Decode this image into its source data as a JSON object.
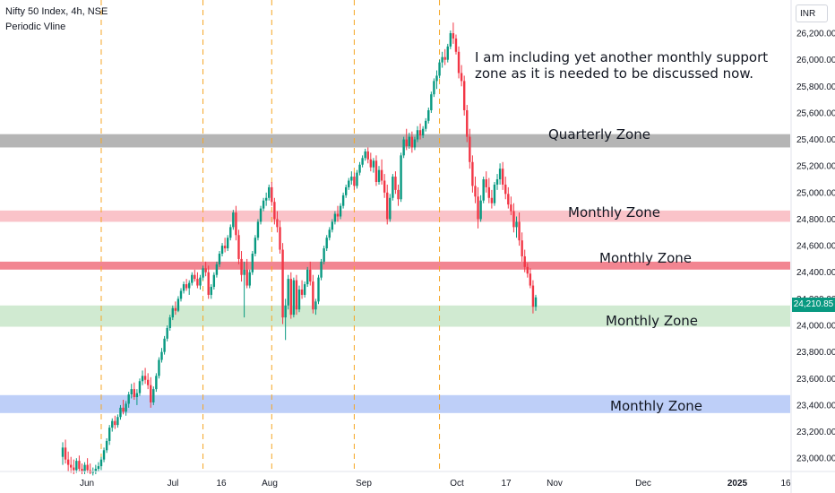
{
  "header": {
    "title": "Nifty 50 Index, 4h, NSE",
    "indicator": "Periodic Vline",
    "currency": "INR"
  },
  "last_price": "24,210.85",
  "annotation": "I am including yet another monthly support zone as it is needed to be discussed now.",
  "colors": {
    "up": "#089981",
    "down": "#f23645",
    "vline": "#f5a623",
    "quarterly_zone": "#a8a8a8",
    "monthly_zone_pink": "#f9b8c0",
    "monthly_zone_red": "#f0707e",
    "monthly_zone_green": "#c8e6c9",
    "monthly_zone_blue": "#b3c7f7"
  },
  "chart_data": {
    "type": "candlestick",
    "y_axis": {
      "range": [
        22900,
        26450
      ],
      "ticks": [
        "23,000.00",
        "23,200.00",
        "23,400.00",
        "23,600.00",
        "23,800.00",
        "24,000.00",
        "24,200.00",
        "24,400.00",
        "24,600.00",
        "24,800.00",
        "25,000.00",
        "25,200.00",
        "25,400.00",
        "25,600.00",
        "25,800.00",
        "26,000.00",
        "26,200.00"
      ],
      "tick_values": [
        23000,
        23200,
        23400,
        23600,
        23800,
        24000,
        24200,
        24400,
        24600,
        24800,
        25000,
        25200,
        25400,
        25600,
        25800,
        26000,
        26200
      ]
    },
    "x_axis": {
      "labels": [
        "Jun",
        "Jul",
        "16",
        "Aug",
        "Sep",
        "Oct",
        "17",
        "Nov",
        "Dec",
        "2025",
        "16"
      ],
      "bold_labels": [
        "2025"
      ]
    },
    "zones": [
      {
        "label": "Quarterly Zone",
        "low": 25340,
        "high": 25440,
        "color": "#a8a8a8"
      },
      {
        "label": "Monthly Zone",
        "low": 24780,
        "high": 24865,
        "color": "#f9b8c0"
      },
      {
        "label": "Monthly Zone",
        "low": 24420,
        "high": 24480,
        "color": "#f0707e"
      },
      {
        "label": "Monthly Zone",
        "low": 23990,
        "high": 24150,
        "color": "#c8e6c9"
      },
      {
        "label": "Monthly Zone",
        "low": 23340,
        "high": 23475,
        "color": "#b3c7f7"
      }
    ],
    "candles": [
      [
        23010,
        23120,
        22950,
        23080
      ],
      [
        23080,
        23140,
        22960,
        22990
      ],
      [
        22990,
        23050,
        22900,
        22950
      ],
      [
        22950,
        23010,
        22890,
        22930
      ],
      [
        22930,
        22990,
        22880,
        22910
      ],
      [
        22910,
        23000,
        22890,
        22980
      ],
      [
        22980,
        23020,
        22900,
        22920
      ],
      [
        22920,
        22960,
        22880,
        22900
      ],
      [
        22900,
        22970,
        22880,
        22950
      ],
      [
        22950,
        23000,
        22890,
        22910
      ],
      [
        22910,
        22960,
        22880,
        22890
      ],
      [
        22890,
        22930,
        22870,
        22900
      ],
      [
        22900,
        22950,
        22880,
        22920
      ],
      [
        22920,
        22970,
        22900,
        22940
      ],
      [
        22940,
        23010,
        22910,
        22990
      ],
      [
        22990,
        23080,
        22970,
        23060
      ],
      [
        23060,
        23150,
        23040,
        23130
      ],
      [
        23130,
        23250,
        23100,
        23230
      ],
      [
        23230,
        23300,
        23200,
        23280
      ],
      [
        23280,
        23320,
        23220,
        23250
      ],
      [
        23250,
        23330,
        23230,
        23310
      ],
      [
        23310,
        23400,
        23290,
        23380
      ],
      [
        23380,
        23440,
        23330,
        23350
      ],
      [
        23350,
        23430,
        23320,
        23410
      ],
      [
        23410,
        23500,
        23380,
        23480
      ],
      [
        23480,
        23560,
        23450,
        23520
      ],
      [
        23520,
        23570,
        23440,
        23460
      ],
      [
        23460,
        23520,
        23400,
        23490
      ],
      [
        23490,
        23600,
        23470,
        23580
      ],
      [
        23580,
        23660,
        23550,
        23620
      ],
      [
        23620,
        23680,
        23560,
        23590
      ],
      [
        23590,
        23640,
        23520,
        23550
      ],
      [
        23550,
        23610,
        23380,
        23420
      ],
      [
        23420,
        23540,
        23400,
        23520
      ],
      [
        23520,
        23640,
        23500,
        23620
      ],
      [
        23620,
        23760,
        23600,
        23740
      ],
      [
        23740,
        23830,
        23720,
        23800
      ],
      [
        23800,
        23920,
        23780,
        23900
      ],
      [
        23900,
        24000,
        23880,
        23980
      ],
      [
        23980,
        24080,
        23960,
        24060
      ],
      [
        24060,
        24150,
        24040,
        24130
      ],
      [
        24130,
        24180,
        24080,
        24110
      ],
      [
        24110,
        24220,
        24100,
        24200
      ],
      [
        24200,
        24280,
        24180,
        24260
      ],
      [
        24260,
        24330,
        24240,
        24310
      ],
      [
        24310,
        24350,
        24260,
        24280
      ],
      [
        24280,
        24340,
        24230,
        24320
      ],
      [
        24320,
        24400,
        24300,
        24380
      ],
      [
        24380,
        24420,
        24330,
        24350
      ],
      [
        24350,
        24400,
        24280,
        24300
      ],
      [
        24300,
        24380,
        24270,
        24360
      ],
      [
        24360,
        24450,
        24340,
        24430
      ],
      [
        24430,
        24480,
        24370,
        24400
      ],
      [
        24400,
        24450,
        24200,
        24230
      ],
      [
        24230,
        24310,
        24200,
        24290
      ],
      [
        24290,
        24400,
        24270,
        24380
      ],
      [
        24380,
        24480,
        24360,
        24460
      ],
      [
        24460,
        24560,
        24440,
        24540
      ],
      [
        24540,
        24620,
        24520,
        24600
      ],
      [
        24600,
        24660,
        24550,
        24580
      ],
      [
        24580,
        24680,
        24560,
        24660
      ],
      [
        24660,
        24760,
        24640,
        24740
      ],
      [
        24740,
        24870,
        24720,
        24850
      ],
      [
        24850,
        24900,
        24640,
        24680
      ],
      [
        24680,
        24720,
        24460,
        24500
      ],
      [
        24500,
        24560,
        24330,
        24380
      ],
      [
        24380,
        24480,
        24060,
        24420
      ],
      [
        24420,
        24500,
        24280,
        24300
      ],
      [
        24300,
        24420,
        24280,
        24400
      ],
      [
        24400,
        24560,
        24380,
        24540
      ],
      [
        24540,
        24680,
        24520,
        24660
      ],
      [
        24660,
        24800,
        24640,
        24780
      ],
      [
        24780,
        24900,
        24760,
        24880
      ],
      [
        24880,
        24960,
        24860,
        24940
      ],
      [
        24940,
        25000,
        24900,
        24960
      ],
      [
        24960,
        25060,
        24940,
        25040
      ],
      [
        25040,
        25080,
        24900,
        24930
      ],
      [
        24930,
        24960,
        24760,
        24800
      ],
      [
        24800,
        24860,
        24700,
        24740
      ],
      [
        24740,
        24790,
        24540,
        24570
      ],
      [
        24570,
        24620,
        24010,
        24060
      ],
      [
        24060,
        24200,
        23890,
        24150
      ],
      [
        24150,
        24380,
        24120,
        24350
      ],
      [
        24350,
        24400,
        24050,
        24080
      ],
      [
        24080,
        24360,
        24060,
        24340
      ],
      [
        24340,
        24380,
        24080,
        24120
      ],
      [
        24120,
        24300,
        24100,
        24270
      ],
      [
        24270,
        24340,
        24200,
        24230
      ],
      [
        24230,
        24330,
        24210,
        24310
      ],
      [
        24310,
        24440,
        24290,
        24420
      ],
      [
        24420,
        24480,
        24300,
        24330
      ],
      [
        24330,
        24380,
        24090,
        24120
      ],
      [
        24120,
        24200,
        24080,
        24180
      ],
      [
        24180,
        24380,
        24160,
        24360
      ],
      [
        24360,
        24500,
        24340,
        24480
      ],
      [
        24480,
        24600,
        24460,
        24580
      ],
      [
        24580,
        24680,
        24560,
        24660
      ],
      [
        24660,
        24740,
        24640,
        24720
      ],
      [
        24720,
        24800,
        24700,
        24780
      ],
      [
        24780,
        24860,
        24760,
        24840
      ],
      [
        24840,
        24900,
        24780,
        24820
      ],
      [
        24820,
        24920,
        24800,
        24900
      ],
      [
        24900,
        25000,
        24880,
        24980
      ],
      [
        24980,
        25060,
        24960,
        25040
      ],
      [
        25040,
        25110,
        25020,
        25090
      ],
      [
        25090,
        25160,
        25060,
        25120
      ],
      [
        25120,
        25150,
        25020,
        25050
      ],
      [
        25050,
        25170,
        25030,
        25150
      ],
      [
        25150,
        25230,
        25130,
        25210
      ],
      [
        25210,
        25280,
        25190,
        25260
      ],
      [
        25260,
        25330,
        25240,
        25310
      ],
      [
        25310,
        25340,
        25220,
        25250
      ],
      [
        25250,
        25300,
        25160,
        25190
      ],
      [
        25190,
        25260,
        25150,
        25240
      ],
      [
        25240,
        25280,
        25050,
        25080
      ],
      [
        25080,
        25200,
        25060,
        25170
      ],
      [
        25170,
        25250,
        25060,
        25090
      ],
      [
        25090,
        25140,
        24960,
        25000
      ],
      [
        25000,
        25060,
        24760,
        24800
      ],
      [
        24800,
        24990,
        24780,
        24960
      ],
      [
        24960,
        25140,
        24940,
        25120
      ],
      [
        25120,
        25160,
        24990,
        25020
      ],
      [
        25020,
        25060,
        24900,
        24950
      ],
      [
        24950,
        25300,
        24930,
        25280
      ],
      [
        25280,
        25420,
        25260,
        25400
      ],
      [
        25400,
        25480,
        25320,
        25350
      ],
      [
        25350,
        25450,
        25330,
        25420
      ],
      [
        25420,
        25460,
        25300,
        25340
      ],
      [
        25340,
        25420,
        25320,
        25400
      ],
      [
        25400,
        25500,
        25380,
        25470
      ],
      [
        25470,
        25520,
        25400,
        25430
      ],
      [
        25430,
        25500,
        25410,
        25480
      ],
      [
        25480,
        25560,
        25460,
        25540
      ],
      [
        25540,
        25640,
        25520,
        25620
      ],
      [
        25620,
        25760,
        25600,
        25740
      ],
      [
        25740,
        25860,
        25720,
        25840
      ],
      [
        25840,
        25920,
        25780,
        25880
      ],
      [
        25880,
        26000,
        25860,
        25980
      ],
      [
        25980,
        26060,
        25940,
        26020
      ],
      [
        26020,
        26080,
        25960,
        26000
      ],
      [
        26000,
        26120,
        25980,
        26100
      ],
      [
        26100,
        26220,
        26080,
        26200
      ],
      [
        26200,
        26280,
        26120,
        26160
      ],
      [
        26160,
        26190,
        26040,
        26060
      ],
      [
        26060,
        26100,
        25860,
        25900
      ],
      [
        25900,
        25960,
        25800,
        25840
      ],
      [
        25840,
        25880,
        25580,
        25620
      ],
      [
        25620,
        25660,
        25380,
        25420
      ],
      [
        25420,
        25480,
        25180,
        25230
      ],
      [
        25230,
        25280,
        25000,
        25050
      ],
      [
        25050,
        25120,
        24920,
        24970
      ],
      [
        24970,
        25040,
        24730,
        24800
      ],
      [
        24800,
        24980,
        24780,
        24940
      ],
      [
        24940,
        25120,
        24920,
        25100
      ],
      [
        25100,
        25160,
        25000,
        25040
      ],
      [
        25040,
        25110,
        24920,
        24960
      ],
      [
        24960,
        25020,
        24880,
        24920
      ],
      [
        24920,
        25080,
        24900,
        25060
      ],
      [
        25060,
        25140,
        25020,
        25100
      ],
      [
        25100,
        25220,
        25060,
        25180
      ],
      [
        25180,
        25230,
        25020,
        25060
      ],
      [
        25060,
        25120,
        24950,
        24990
      ],
      [
        24990,
        25040,
        24880,
        24910
      ],
      [
        24910,
        24970,
        24830,
        24860
      ],
      [
        24860,
        24920,
        24700,
        24740
      ],
      [
        24740,
        24820,
        24660,
        24780
      ],
      [
        24780,
        24850,
        24600,
        24640
      ],
      [
        24640,
        24700,
        24480,
        24520
      ],
      [
        24520,
        24570,
        24400,
        24440
      ],
      [
        24440,
        24470,
        24360,
        24390
      ],
      [
        24390,
        24430,
        24280,
        24300
      ],
      [
        24300,
        24340,
        24090,
        24140
      ],
      [
        24140,
        24230,
        24110,
        24211
      ]
    ],
    "vlines_at_candle": [
      14,
      51,
      76,
      106,
      137
    ]
  }
}
